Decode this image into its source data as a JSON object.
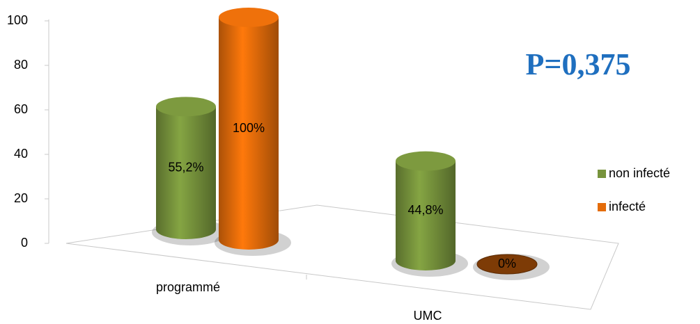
{
  "chart_data": {
    "type": "bar3d",
    "categories": [
      "programmé",
      "UMC"
    ],
    "series": [
      {
        "name": "non infecté",
        "color": "#77933c",
        "values": [
          55.2,
          44.8
        ],
        "value_labels": [
          "55,2%",
          "44,8%"
        ]
      },
      {
        "name": "infecté",
        "color": "#e46c0a",
        "values": [
          100,
          0
        ],
        "value_labels": [
          "100%",
          "0%"
        ]
      }
    ],
    "ylim": [
      0,
      100
    ],
    "yticks": [
      0,
      20,
      40,
      60,
      80,
      100
    ],
    "annotation": "P=0,375",
    "annotation_color": "#1f6fbf",
    "legend": "right"
  }
}
